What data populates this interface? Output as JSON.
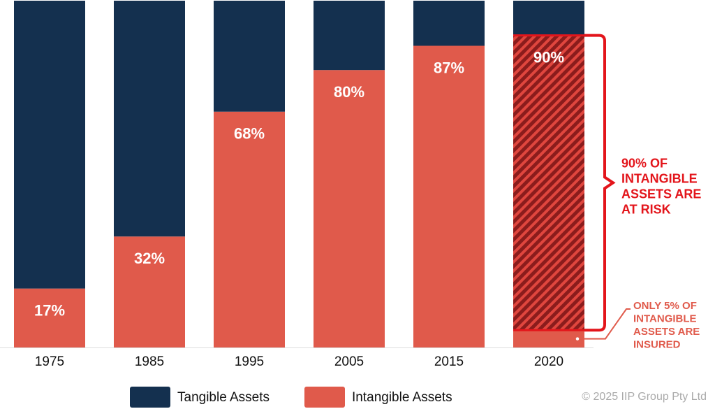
{
  "chart_data": {
    "type": "stacked_bar",
    "categories": [
      "1975",
      "1985",
      "1995",
      "2005",
      "2015",
      "2020"
    ],
    "series": [
      {
        "name": "Intangible Assets",
        "color": "#e05a4b",
        "values": [
          17,
          32,
          68,
          80,
          87,
          90
        ],
        "value_labels": [
          "17%",
          "32%",
          "68%",
          "80%",
          "87%",
          "90%"
        ]
      },
      {
        "name": "Tangible Assets",
        "color": "#14304f",
        "values": [
          83,
          68,
          32,
          20,
          13,
          10
        ]
      }
    ],
    "ylim": [
      0,
      100
    ],
    "at_risk": {
      "value": 90,
      "lines": [
        "90% OF",
        "INTANGIBLE",
        "ASSETS ARE",
        "AT RISK"
      ],
      "color": "#e3151b"
    },
    "insured": {
      "value": 5,
      "lines": [
        "ONLY 5% OF",
        "INTANGIBLE",
        "ASSETS ARE",
        "INSURED"
      ]
    },
    "copyright": "© 2025 IIP Group Pty Ltd"
  }
}
